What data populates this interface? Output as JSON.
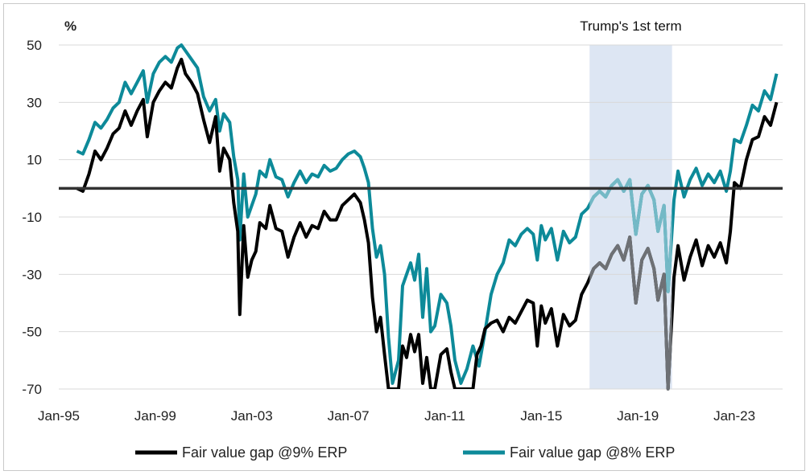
{
  "chart_data": {
    "type": "line",
    "ylabel": "%",
    "ylim": [
      -70,
      50
    ],
    "xlim": [
      "1995-01",
      "2025-01"
    ],
    "yticks": [
      50,
      30,
      10,
      -10,
      -30,
      -50,
      -70
    ],
    "xticks": [
      {
        "label": "Jan-95",
        "x": "1995-01"
      },
      {
        "label": "Jan-99",
        "x": "1999-01"
      },
      {
        "label": "Jan-03",
        "x": "2003-01"
      },
      {
        "label": "Jan-07",
        "x": "2007-01"
      },
      {
        "label": "Jan-11",
        "x": "2011-01"
      },
      {
        "label": "Jan-15",
        "x": "2015-01"
      },
      {
        "label": "Jan-19",
        "x": "2019-01"
      },
      {
        "label": "Jan-23",
        "x": "2023-01"
      }
    ],
    "reference_line": 0,
    "grid": "horizontal",
    "legend_position": "bottom",
    "shaded_region": {
      "label": "Trump's 1st term",
      "start": "2017-01",
      "end": "2020-06",
      "color": "#dde6f3"
    },
    "series": [
      {
        "name": "Fair value gap @9% ERP",
        "color": "#000000",
        "in_region_color": "#6e7175",
        "points": [
          [
            "1995-10",
            0
          ],
          [
            "1996-01",
            -1
          ],
          [
            "1996-04",
            5
          ],
          [
            "1996-07",
            13
          ],
          [
            "1996-10",
            10
          ],
          [
            "1997-01",
            14
          ],
          [
            "1997-04",
            19
          ],
          [
            "1997-07",
            21
          ],
          [
            "1997-10",
            27
          ],
          [
            "1998-01",
            22
          ],
          [
            "1998-04",
            27
          ],
          [
            "1998-07",
            31
          ],
          [
            "1998-09",
            18
          ],
          [
            "1998-12",
            30
          ],
          [
            "1999-03",
            34
          ],
          [
            "1999-06",
            37
          ],
          [
            "1999-09",
            35
          ],
          [
            "1999-12",
            42
          ],
          [
            "2000-02",
            45
          ],
          [
            "2000-04",
            40
          ],
          [
            "2000-07",
            37
          ],
          [
            "2000-10",
            33
          ],
          [
            "2001-01",
            24
          ],
          [
            "2001-04",
            16
          ],
          [
            "2001-07",
            25
          ],
          [
            "2001-09",
            6
          ],
          [
            "2001-11",
            14
          ],
          [
            "2002-02",
            10
          ],
          [
            "2002-04",
            -5
          ],
          [
            "2002-06",
            -15
          ],
          [
            "2002-07",
            -44
          ],
          [
            "2002-09",
            -13
          ],
          [
            "2002-11",
            -31
          ],
          [
            "2003-01",
            -25
          ],
          [
            "2003-03",
            -22
          ],
          [
            "2003-05",
            -12
          ],
          [
            "2003-08",
            -14
          ],
          [
            "2003-10",
            -6
          ],
          [
            "2004-01",
            -14
          ],
          [
            "2004-04",
            -15
          ],
          [
            "2004-07",
            -24
          ],
          [
            "2004-10",
            -17
          ],
          [
            "2005-01",
            -12
          ],
          [
            "2005-04",
            -17
          ],
          [
            "2005-07",
            -13
          ],
          [
            "2005-10",
            -14
          ],
          [
            "2006-01",
            -8
          ],
          [
            "2006-04",
            -11
          ],
          [
            "2006-07",
            -11
          ],
          [
            "2006-10",
            -6
          ],
          [
            "2007-01",
            -4
          ],
          [
            "2007-04",
            -2
          ],
          [
            "2007-07",
            -5
          ],
          [
            "2007-09",
            -11
          ],
          [
            "2007-11",
            -19
          ],
          [
            "2008-01",
            -38
          ],
          [
            "2008-03",
            -50
          ],
          [
            "2008-05",
            -45
          ],
          [
            "2008-07",
            -58
          ],
          [
            "2008-09",
            -70
          ],
          [
            "2008-11",
            -70
          ],
          [
            "2009-02",
            -70
          ],
          [
            "2009-04",
            -55
          ],
          [
            "2009-06",
            -59
          ],
          [
            "2009-08",
            -51
          ],
          [
            "2009-10",
            -57
          ],
          [
            "2009-12",
            -51
          ],
          [
            "2010-02",
            -68
          ],
          [
            "2010-04",
            -59
          ],
          [
            "2010-06",
            -70
          ],
          [
            "2010-08",
            -70
          ],
          [
            "2010-11",
            -58
          ],
          [
            "2011-02",
            -56
          ],
          [
            "2011-04",
            -64
          ],
          [
            "2011-06",
            -70
          ],
          [
            "2012-03",
            -70
          ],
          [
            "2012-05",
            -58
          ],
          [
            "2012-07",
            -55
          ],
          [
            "2012-09",
            -49
          ],
          [
            "2012-12",
            -47
          ],
          [
            "2013-03",
            -46
          ],
          [
            "2013-06",
            -50
          ],
          [
            "2013-09",
            -45
          ],
          [
            "2013-12",
            -47
          ],
          [
            "2014-03",
            -43
          ],
          [
            "2014-06",
            -39
          ],
          [
            "2014-09",
            -40
          ],
          [
            "2014-11",
            -55
          ],
          [
            "2015-01",
            -41
          ],
          [
            "2015-03",
            -47
          ],
          [
            "2015-06",
            -42
          ],
          [
            "2015-09",
            -55
          ],
          [
            "2015-12",
            -44
          ],
          [
            "2016-03",
            -48
          ],
          [
            "2016-06",
            -46
          ],
          [
            "2016-09",
            -37
          ],
          [
            "2016-12",
            -33
          ],
          [
            "2017-03",
            -28
          ],
          [
            "2017-06",
            -26
          ],
          [
            "2017-09",
            -28
          ],
          [
            "2017-12",
            -23
          ],
          [
            "2018-03",
            -20
          ],
          [
            "2018-06",
            -25
          ],
          [
            "2018-09",
            -17
          ],
          [
            "2018-12",
            -40
          ],
          [
            "2019-03",
            -25
          ],
          [
            "2019-06",
            -21
          ],
          [
            "2019-09",
            -28
          ],
          [
            "2019-11",
            -39
          ],
          [
            "2020-02",
            -30
          ],
          [
            "2020-04",
            -70
          ],
          [
            "2020-07",
            -31
          ],
          [
            "2020-09",
            -20
          ],
          [
            "2020-12",
            -32
          ],
          [
            "2021-03",
            -24
          ],
          [
            "2021-06",
            -18
          ],
          [
            "2021-09",
            -27
          ],
          [
            "2021-12",
            -20
          ],
          [
            "2022-03",
            -24
          ],
          [
            "2022-06",
            -19
          ],
          [
            "2022-09",
            -26
          ],
          [
            "2022-11",
            -15
          ],
          [
            "2023-01",
            2
          ],
          [
            "2023-04",
            0
          ],
          [
            "2023-07",
            10
          ],
          [
            "2023-10",
            17
          ],
          [
            "2024-01",
            18
          ],
          [
            "2024-04",
            25
          ],
          [
            "2024-07",
            22
          ],
          [
            "2024-10",
            30
          ]
        ]
      },
      {
        "name": "Fair value gap @8% ERP",
        "color": "#0d8a99",
        "in_region_color": "#74b9c6",
        "points": [
          [
            "1995-10",
            13
          ],
          [
            "1996-01",
            12
          ],
          [
            "1996-04",
            17
          ],
          [
            "1996-07",
            23
          ],
          [
            "1996-10",
            21
          ],
          [
            "1997-01",
            24
          ],
          [
            "1997-04",
            28
          ],
          [
            "1997-07",
            30
          ],
          [
            "1997-10",
            37
          ],
          [
            "1998-01",
            33
          ],
          [
            "1998-04",
            37
          ],
          [
            "1998-07",
            41
          ],
          [
            "1998-09",
            30
          ],
          [
            "1998-12",
            40
          ],
          [
            "1999-03",
            44
          ],
          [
            "1999-06",
            46
          ],
          [
            "1999-09",
            44
          ],
          [
            "1999-12",
            49
          ],
          [
            "2000-02",
            50
          ],
          [
            "2000-04",
            48
          ],
          [
            "2000-07",
            45
          ],
          [
            "2000-10",
            42
          ],
          [
            "2001-01",
            32
          ],
          [
            "2001-04",
            27
          ],
          [
            "2001-07",
            31
          ],
          [
            "2001-09",
            20
          ],
          [
            "2001-11",
            26
          ],
          [
            "2002-02",
            23
          ],
          [
            "2002-04",
            11
          ],
          [
            "2002-06",
            3
          ],
          [
            "2002-07",
            -18
          ],
          [
            "2002-09",
            5
          ],
          [
            "2002-11",
            -10
          ],
          [
            "2003-01",
            -6
          ],
          [
            "2003-03",
            -2
          ],
          [
            "2003-05",
            6
          ],
          [
            "2003-08",
            4
          ],
          [
            "2003-10",
            10
          ],
          [
            "2004-01",
            4
          ],
          [
            "2004-04",
            3
          ],
          [
            "2004-07",
            -3
          ],
          [
            "2004-10",
            2
          ],
          [
            "2005-01",
            6
          ],
          [
            "2005-04",
            2
          ],
          [
            "2005-07",
            5
          ],
          [
            "2005-10",
            4
          ],
          [
            "2006-01",
            8
          ],
          [
            "2006-04",
            6
          ],
          [
            "2006-07",
            7
          ],
          [
            "2006-10",
            10
          ],
          [
            "2007-01",
            12
          ],
          [
            "2007-04",
            13
          ],
          [
            "2007-07",
            11
          ],
          [
            "2007-09",
            7
          ],
          [
            "2007-11",
            2
          ],
          [
            "2008-01",
            -14
          ],
          [
            "2008-03",
            -24
          ],
          [
            "2008-05",
            -20
          ],
          [
            "2008-07",
            -30
          ],
          [
            "2008-09",
            -52
          ],
          [
            "2008-11",
            -68
          ],
          [
            "2009-02",
            -60
          ],
          [
            "2009-04",
            -34
          ],
          [
            "2009-06",
            -30
          ],
          [
            "2009-08",
            -26
          ],
          [
            "2009-10",
            -32
          ],
          [
            "2009-12",
            -23
          ],
          [
            "2010-02",
            -45
          ],
          [
            "2010-04",
            -28
          ],
          [
            "2010-06",
            -50
          ],
          [
            "2010-08",
            -48
          ],
          [
            "2010-11",
            -37
          ],
          [
            "2011-02",
            -40
          ],
          [
            "2011-04",
            -48
          ],
          [
            "2011-06",
            -60
          ],
          [
            "2011-09",
            -68
          ],
          [
            "2011-12",
            -63
          ],
          [
            "2012-03",
            -55
          ],
          [
            "2012-06",
            -62
          ],
          [
            "2012-09",
            -50
          ],
          [
            "2012-12",
            -37
          ],
          [
            "2013-03",
            -30
          ],
          [
            "2013-06",
            -26
          ],
          [
            "2013-09",
            -18
          ],
          [
            "2013-12",
            -20
          ],
          [
            "2014-03",
            -16
          ],
          [
            "2014-06",
            -14
          ],
          [
            "2014-09",
            -16
          ],
          [
            "2014-11",
            -25
          ],
          [
            "2015-01",
            -13
          ],
          [
            "2015-03",
            -18
          ],
          [
            "2015-06",
            -14
          ],
          [
            "2015-09",
            -25
          ],
          [
            "2015-12",
            -15
          ],
          [
            "2016-03",
            -19
          ],
          [
            "2016-06",
            -17
          ],
          [
            "2016-09",
            -9
          ],
          [
            "2016-12",
            -7
          ],
          [
            "2017-03",
            -3
          ],
          [
            "2017-06",
            -1
          ],
          [
            "2017-09",
            -3
          ],
          [
            "2017-12",
            1
          ],
          [
            "2018-03",
            3
          ],
          [
            "2018-06",
            -1
          ],
          [
            "2018-09",
            3
          ],
          [
            "2018-12",
            -16
          ],
          [
            "2019-03",
            -2
          ],
          [
            "2019-06",
            1
          ],
          [
            "2019-09",
            -4
          ],
          [
            "2019-11",
            -15
          ],
          [
            "2020-02",
            -6
          ],
          [
            "2020-04",
            -36
          ],
          [
            "2020-07",
            -4
          ],
          [
            "2020-09",
            6
          ],
          [
            "2020-12",
            -3
          ],
          [
            "2021-03",
            3
          ],
          [
            "2021-06",
            7
          ],
          [
            "2021-09",
            1
          ],
          [
            "2021-12",
            5
          ],
          [
            "2022-03",
            2
          ],
          [
            "2022-06",
            6
          ],
          [
            "2022-09",
            -1
          ],
          [
            "2022-11",
            6
          ],
          [
            "2023-01",
            17
          ],
          [
            "2023-04",
            16
          ],
          [
            "2023-07",
            22
          ],
          [
            "2023-10",
            29
          ],
          [
            "2024-01",
            27
          ],
          [
            "2024-04",
            34
          ],
          [
            "2024-07",
            31
          ],
          [
            "2024-10",
            40
          ]
        ]
      }
    ]
  }
}
